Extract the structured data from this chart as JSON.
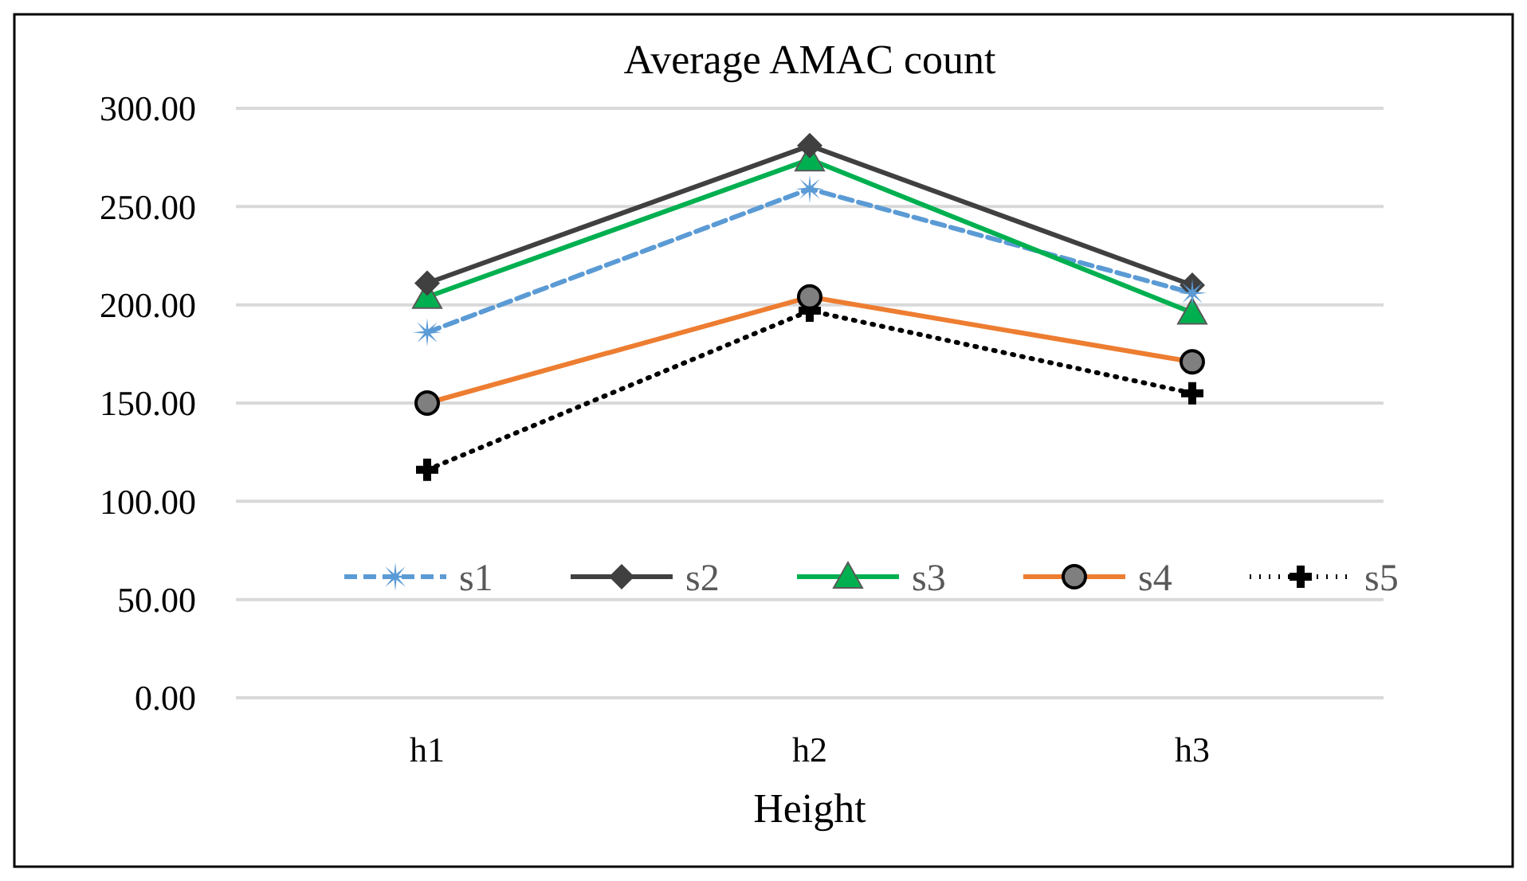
{
  "chart_data": {
    "type": "line",
    "title": "Average AMAC count",
    "xlabel": "Height",
    "categories": [
      "h1",
      "h2",
      "h3"
    ],
    "series": [
      {
        "name": "s1",
        "color": "#5b9bd5",
        "values": [
          186,
          259,
          206
        ],
        "marker": "star",
        "line_style": "dashed"
      },
      {
        "name": "s2",
        "color": "#404040",
        "values": [
          211,
          281,
          210
        ],
        "marker": "diamond",
        "line_style": "solid"
      },
      {
        "name": "s3",
        "color": "#00b050",
        "values": [
          204,
          274,
          196
        ],
        "marker": "triangle",
        "line_style": "solid"
      },
      {
        "name": "s4",
        "color": "#ed7d31",
        "values": [
          150,
          204,
          171
        ],
        "marker": "circle",
        "line_style": "solid"
      },
      {
        "name": "s5",
        "color": "#000000",
        "values": [
          116,
          197,
          155
        ],
        "marker": "cross",
        "line_style": "dotted"
      }
    ],
    "ylim": [
      0,
      300
    ],
    "yticks": [
      {
        "value": 0,
        "label": "0.00"
      },
      {
        "value": 50,
        "label": "50.00"
      },
      {
        "value": 100,
        "label": "100.00"
      },
      {
        "value": 150,
        "label": "150.00"
      },
      {
        "value": 200,
        "label": "200.00"
      },
      {
        "value": 250,
        "label": "250.00"
      },
      {
        "value": 300,
        "label": "300.00"
      }
    ],
    "grid": "y",
    "legend": "bottom"
  }
}
